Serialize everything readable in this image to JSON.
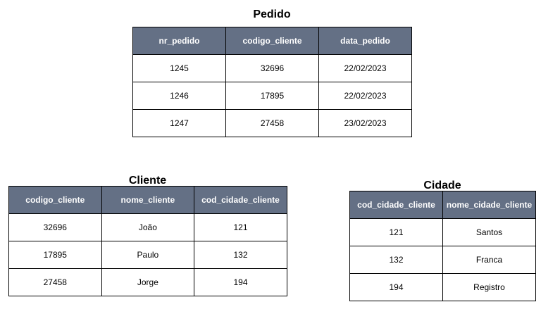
{
  "colors": {
    "header_bg": "#647085",
    "header_text": "#ffffff",
    "border": "#000000"
  },
  "pedido": {
    "title": "Pedido",
    "columns": [
      "nr_pedido",
      "codigo_cliente",
      "data_pedido"
    ],
    "rows": [
      [
        "1245",
        "32696",
        "22/02/2023"
      ],
      [
        "1246",
        "17895",
        "22/02/2023"
      ],
      [
        "1247",
        "27458",
        "23/02/2023"
      ]
    ]
  },
  "cliente": {
    "title": "Cliente",
    "columns": [
      "codigo_cliente",
      "nome_cliente",
      "cod_cidade_cliente"
    ],
    "rows": [
      [
        "32696",
        "João",
        "121"
      ],
      [
        "17895",
        "Paulo",
        "132"
      ],
      [
        "27458",
        "Jorge",
        "194"
      ]
    ]
  },
  "cidade": {
    "title": "Cidade",
    "columns": [
      "cod_cidade_cliente",
      "nome_cidade_cliente"
    ],
    "rows": [
      [
        "121",
        "Santos"
      ],
      [
        "132",
        "Franca"
      ],
      [
        "194",
        "Registro"
      ]
    ]
  }
}
